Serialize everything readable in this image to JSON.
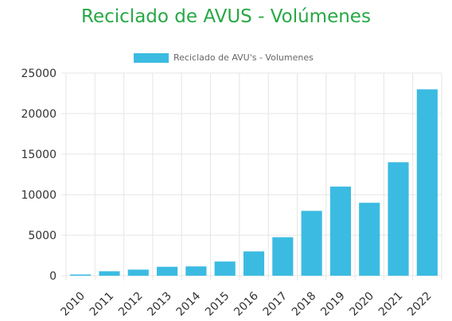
{
  "page": {
    "title": "Reciclado de AVUS - Volúmenes"
  },
  "colors": {
    "title": "#27a844",
    "bar": "#3bbbe2",
    "grid": "#e6e6e6",
    "axis_text": "#333333"
  },
  "chart_data": {
    "type": "bar",
    "title": "Reciclado de AVUS - Volúmenes",
    "categories": [
      "2010",
      "2011",
      "2012",
      "2013",
      "2014",
      "2015",
      "2016",
      "2017",
      "2018",
      "2019",
      "2020",
      "2021",
      "2022"
    ],
    "series": [
      {
        "name": "Reciclado de AVU's - Volumenes",
        "values": [
          150,
          550,
          750,
          1100,
          1150,
          1750,
          3000,
          4750,
          8000,
          11000,
          9000,
          14000,
          23000
        ]
      }
    ],
    "ylim": [
      0,
      25000
    ],
    "yticks": [
      0,
      5000,
      10000,
      15000,
      20000,
      25000
    ],
    "xlabel": "",
    "ylabel": "",
    "grid": true,
    "legend": "top-center"
  }
}
